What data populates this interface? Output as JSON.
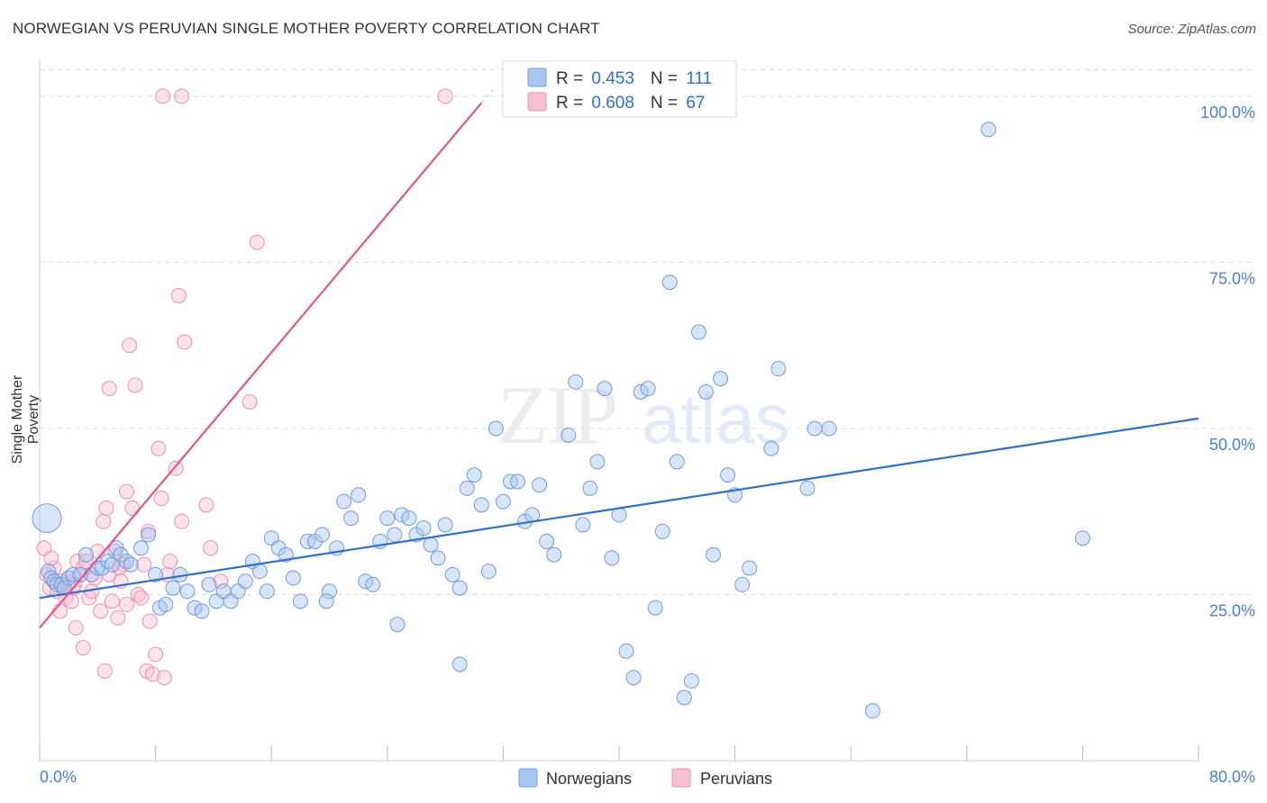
{
  "title": "NORWEGIAN VS PERUVIAN SINGLE MOTHER POVERTY CORRELATION CHART",
  "source": "Source: ZipAtlas.com",
  "watermark": {
    "zip": "ZIP",
    "atlas": "atlas"
  },
  "colors": {
    "norwegian": "#6f9be0",
    "norwegian_fill": "#a9c6f0",
    "peruvian": "#ee8fb0",
    "peruvian_fill": "#f7bfd2",
    "blue_line": "#2f6fcb",
    "pink_line": "#e0578a",
    "value_text": "#2f6fcb",
    "grid": "#dcdcdc"
  },
  "legend": {
    "items": [
      {
        "r_label": "R = ",
        "r_value": "0.453",
        "n_label": "N = ",
        "n_value": "111"
      },
      {
        "r_label": "R = ",
        "r_value": "0.608",
        "n_label": "N = ",
        "n_value": "67"
      }
    ]
  },
  "bottom_legend": [
    "Norwegians",
    "Peruvians"
  ],
  "chart_data": {
    "type": "scatter",
    "title": "NORWEGIAN VS PERUVIAN SINGLE MOTHER POVERTY CORRELATION CHART",
    "xlabel": "",
    "ylabel": "Single Mother Poverty",
    "xlim": [
      0,
      80
    ],
    "ylim": [
      0,
      105
    ],
    "x_tick_labels": [
      "0.0%",
      "80.0%"
    ],
    "y_ticks": [
      25,
      50,
      75,
      100
    ],
    "y_tick_labels": [
      "25.0%",
      "50.0%",
      "75.0%",
      "100.0%"
    ],
    "grid": "horizontal dashed",
    "legend_position": "top-center",
    "series": [
      {
        "name": "Norwegians",
        "r": 0.453,
        "n": 111,
        "trend": {
          "x": [
            0,
            80
          ],
          "y": [
            24.5,
            51.5
          ]
        },
        "points": [
          [
            0.5,
            36.5
          ],
          [
            0.6,
            28.5
          ],
          [
            0.8,
            27.5
          ],
          [
            1.0,
            27.0
          ],
          [
            1.2,
            26.5
          ],
          [
            1.5,
            26.5
          ],
          [
            1.7,
            26.0
          ],
          [
            2.0,
            27.5
          ],
          [
            2.3,
            28.0
          ],
          [
            2.8,
            28.0
          ],
          [
            3.2,
            31.0
          ],
          [
            3.6,
            28.0
          ],
          [
            4.0,
            29.0
          ],
          [
            4.3,
            29.0
          ],
          [
            4.7,
            30.0
          ],
          [
            5.0,
            29.5
          ],
          [
            5.3,
            32.0
          ],
          [
            5.6,
            31.0
          ],
          [
            6.0,
            30.0
          ],
          [
            6.3,
            29.5
          ],
          [
            7.0,
            32.0
          ],
          [
            7.5,
            34.0
          ],
          [
            8.0,
            28.0
          ],
          [
            8.3,
            23.0
          ],
          [
            8.7,
            23.5
          ],
          [
            9.2,
            26.0
          ],
          [
            9.7,
            28.0
          ],
          [
            10.2,
            25.5
          ],
          [
            10.7,
            23.0
          ],
          [
            11.2,
            22.5
          ],
          [
            11.7,
            26.5
          ],
          [
            12.2,
            24.0
          ],
          [
            12.7,
            25.5
          ],
          [
            13.2,
            24.0
          ],
          [
            13.7,
            25.5
          ],
          [
            14.2,
            27.0
          ],
          [
            14.7,
            30.0
          ],
          [
            15.2,
            28.5
          ],
          [
            15.7,
            25.5
          ],
          [
            16.0,
            33.5
          ],
          [
            16.5,
            32.0
          ],
          [
            17.0,
            31.0
          ],
          [
            17.5,
            27.5
          ],
          [
            18.0,
            24.0
          ],
          [
            18.5,
            33.0
          ],
          [
            19.0,
            33.0
          ],
          [
            19.5,
            34.0
          ],
          [
            20.0,
            25.5
          ],
          [
            20.5,
            32.0
          ],
          [
            21.0,
            39.0
          ],
          [
            21.5,
            36.5
          ],
          [
            22.0,
            40.0
          ],
          [
            22.5,
            27.0
          ],
          [
            23.0,
            26.5
          ],
          [
            23.5,
            33.0
          ],
          [
            24.0,
            36.5
          ],
          [
            24.5,
            34.0
          ],
          [
            25.0,
            37.0
          ],
          [
            25.5,
            36.5
          ],
          [
            26.0,
            34.0
          ],
          [
            26.5,
            35.0
          ],
          [
            27.0,
            32.5
          ],
          [
            27.5,
            30.5
          ],
          [
            28.0,
            35.5
          ],
          [
            28.5,
            28.0
          ],
          [
            29.0,
            26.0
          ],
          [
            29.5,
            41.0
          ],
          [
            30.0,
            43.0
          ],
          [
            30.5,
            38.5
          ],
          [
            31.0,
            28.5
          ],
          [
            31.5,
            50.0
          ],
          [
            32.0,
            39.0
          ],
          [
            32.5,
            42.0
          ],
          [
            33.0,
            42.0
          ],
          [
            33.5,
            36.0
          ],
          [
            34.0,
            37.0
          ],
          [
            34.5,
            41.5
          ],
          [
            35.0,
            33.0
          ],
          [
            35.5,
            31.0
          ],
          [
            36.5,
            49.0
          ],
          [
            37.0,
            57.0
          ],
          [
            37.5,
            35.5
          ],
          [
            38.0,
            41.0
          ],
          [
            38.5,
            45.0
          ],
          [
            39.0,
            56.0
          ],
          [
            39.5,
            30.5
          ],
          [
            40.0,
            37.0
          ],
          [
            40.5,
            16.5
          ],
          [
            41.0,
            12.5
          ],
          [
            41.5,
            55.5
          ],
          [
            42.0,
            56.0
          ],
          [
            42.5,
            23.0
          ],
          [
            43.0,
            34.5
          ],
          [
            43.5,
            72.0
          ],
          [
            44.0,
            45.0
          ],
          [
            44.5,
            9.5
          ],
          [
            45.0,
            12.0
          ],
          [
            45.5,
            64.5
          ],
          [
            46.0,
            55.5
          ],
          [
            46.5,
            31.0
          ],
          [
            47.0,
            57.5
          ],
          [
            47.5,
            43.0
          ],
          [
            48.0,
            40.0
          ],
          [
            48.5,
            26.5
          ],
          [
            49.0,
            29.0
          ],
          [
            50.5,
            47.0
          ],
          [
            51.0,
            59.0
          ],
          [
            53.0,
            41.0
          ],
          [
            53.5,
            50.0
          ],
          [
            54.5,
            50.0
          ],
          [
            57.5,
            7.5
          ],
          [
            65.5,
            95.0
          ],
          [
            72.0,
            33.5
          ],
          [
            19.8,
            24.0
          ],
          [
            24.7,
            20.5
          ],
          [
            29.0,
            14.5
          ]
        ]
      },
      {
        "name": "Peruvians",
        "r": 0.608,
        "n": 67,
        "trend": {
          "x": [
            0,
            30.5
          ],
          "y": [
            20.0,
            99.0
          ]
        },
        "points": [
          [
            0.3,
            32.0
          ],
          [
            0.5,
            28.0
          ],
          [
            0.7,
            26.0
          ],
          [
            1.0,
            27.0
          ],
          [
            1.2,
            25.5
          ],
          [
            1.4,
            22.5
          ],
          [
            1.6,
            26.0
          ],
          [
            1.8,
            24.5
          ],
          [
            2.0,
            27.5
          ],
          [
            2.2,
            24.0
          ],
          [
            2.4,
            26.5
          ],
          [
            2.6,
            30.0
          ],
          [
            2.8,
            28.0
          ],
          [
            3.0,
            29.0
          ],
          [
            3.2,
            30.0
          ],
          [
            3.4,
            24.5
          ],
          [
            3.6,
            25.5
          ],
          [
            3.8,
            27.5
          ],
          [
            4.0,
            31.5
          ],
          [
            4.2,
            22.5
          ],
          [
            4.4,
            36.0
          ],
          [
            4.6,
            38.0
          ],
          [
            4.8,
            28.0
          ],
          [
            5.0,
            24.0
          ],
          [
            5.2,
            31.5
          ],
          [
            5.4,
            21.5
          ],
          [
            5.6,
            27.0
          ],
          [
            5.8,
            29.5
          ],
          [
            6.0,
            23.5
          ],
          [
            6.2,
            62.5
          ],
          [
            6.4,
            38.0
          ],
          [
            6.6,
            56.5
          ],
          [
            6.8,
            25.0
          ],
          [
            7.0,
            24.5
          ],
          [
            7.2,
            29.5
          ],
          [
            7.4,
            13.5
          ],
          [
            7.6,
            21.0
          ],
          [
            7.8,
            13.0
          ],
          [
            8.0,
            16.0
          ],
          [
            8.2,
            47.0
          ],
          [
            8.4,
            39.5
          ],
          [
            8.6,
            12.5
          ],
          [
            8.8,
            28.0
          ],
          [
            9.0,
            30.0
          ],
          [
            9.4,
            44.0
          ],
          [
            9.6,
            70.0
          ],
          [
            9.8,
            36.0
          ],
          [
            10.0,
            63.0
          ],
          [
            11.5,
            38.5
          ],
          [
            11.8,
            32.0
          ],
          [
            12.5,
            27.0
          ],
          [
            14.5,
            54.0
          ],
          [
            15.0,
            78.0
          ],
          [
            8.5,
            100.0
          ],
          [
            9.8,
            100.0
          ],
          [
            28.0,
            100.0
          ],
          [
            4.8,
            56.0
          ],
          [
            3.0,
            17.0
          ],
          [
            2.5,
            20.0
          ],
          [
            6.0,
            40.5
          ],
          [
            4.5,
            13.5
          ],
          [
            1.0,
            29.0
          ],
          [
            0.8,
            30.5
          ],
          [
            1.5,
            27.0
          ],
          [
            2.3,
            26.0
          ],
          [
            7.5,
            34.5
          ],
          [
            5.5,
            29.0
          ]
        ]
      }
    ]
  }
}
